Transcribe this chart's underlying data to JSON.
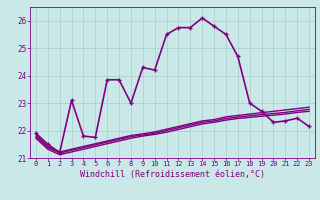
{
  "bg_color": "#cbe8e8",
  "grid_color": "#aad4d4",
  "line_color": "#800080",
  "marker": "+",
  "xlabel": "Windchill (Refroidissement éolien,°C)",
  "xlabel_color": "#800080",
  "ylim": [
    21.0,
    26.5
  ],
  "xlim": [
    -0.5,
    23.5
  ],
  "yticks": [
    21,
    22,
    23,
    24,
    25,
    26
  ],
  "xticks": [
    0,
    1,
    2,
    3,
    4,
    5,
    6,
    7,
    8,
    9,
    10,
    11,
    12,
    13,
    14,
    15,
    16,
    17,
    18,
    19,
    20,
    21,
    22,
    23
  ],
  "series": [
    {
      "x": [
        0,
        1,
        2,
        3,
        4,
        5,
        6,
        7,
        8,
        9,
        10,
        11,
        12,
        13,
        14,
        15,
        16,
        17,
        18,
        19,
        20,
        21,
        22,
        23
      ],
      "y": [
        21.9,
        21.5,
        21.2,
        23.1,
        21.8,
        21.75,
        23.85,
        23.85,
        23.0,
        24.3,
        24.2,
        25.5,
        25.75,
        25.75,
        26.1,
        25.8,
        25.5,
        24.7,
        23.0,
        22.7,
        22.3,
        22.35,
        22.45,
        22.15
      ],
      "marker": true,
      "linewidth": 1.2
    },
    {
      "x": [
        0,
        1,
        2,
        3,
        4,
        5,
        6,
        7,
        8,
        9,
        10,
        11,
        12,
        13,
        14,
        15,
        16,
        17,
        18,
        19,
        20,
        21,
        22,
        23
      ],
      "y": [
        21.85,
        21.42,
        21.22,
        21.32,
        21.42,
        21.52,
        21.62,
        21.72,
        21.82,
        21.88,
        21.95,
        22.05,
        22.15,
        22.25,
        22.35,
        22.4,
        22.5,
        22.55,
        22.6,
        22.65,
        22.7,
        22.75,
        22.8,
        22.85
      ],
      "marker": false,
      "linewidth": 1.0
    },
    {
      "x": [
        0,
        1,
        2,
        3,
        4,
        5,
        6,
        7,
        8,
        9,
        10,
        11,
        12,
        13,
        14,
        15,
        16,
        17,
        18,
        19,
        20,
        21,
        22,
        23
      ],
      "y": [
        21.78,
        21.38,
        21.18,
        21.28,
        21.38,
        21.48,
        21.58,
        21.68,
        21.78,
        21.84,
        21.9,
        22.0,
        22.1,
        22.2,
        22.3,
        22.35,
        22.44,
        22.49,
        22.54,
        22.58,
        22.62,
        22.66,
        22.72,
        22.77
      ],
      "marker": false,
      "linewidth": 1.0
    },
    {
      "x": [
        0,
        1,
        2,
        3,
        4,
        5,
        6,
        7,
        8,
        9,
        10,
        11,
        12,
        13,
        14,
        15,
        16,
        17,
        18,
        19,
        20,
        21,
        22,
        23
      ],
      "y": [
        21.72,
        21.32,
        21.12,
        21.22,
        21.32,
        21.42,
        21.52,
        21.62,
        21.72,
        21.8,
        21.86,
        21.94,
        22.04,
        22.14,
        22.24,
        22.3,
        22.38,
        22.44,
        22.48,
        22.52,
        22.56,
        22.6,
        22.66,
        22.7
      ],
      "marker": false,
      "linewidth": 1.0
    }
  ]
}
